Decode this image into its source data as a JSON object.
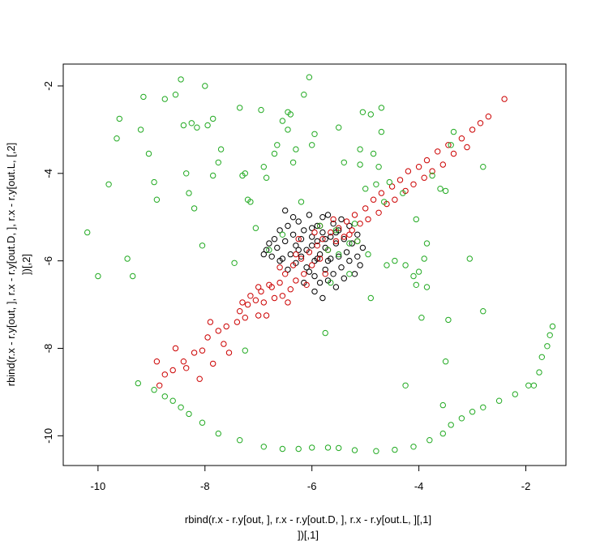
{
  "chart_data": {
    "type": "scatter",
    "title": "",
    "xlabel": [
      "rbind(r.x - r.y[out, ], r.x - r.y[out.D, ], r.x - r.y[out.L, ][,1]",
      "])[,1]"
    ],
    "ylabel": [
      "rbind(r.x - r.y[out, ], r.x - r.y[out.D, ], r.x - r.y[out.L, [,2]",
      "])[,2]"
    ],
    "xlim": [
      -10.65,
      -1.25
    ],
    "ylim": [
      -10.68,
      -1.5
    ],
    "xticks": [
      -10,
      -8,
      -6,
      -4,
      -2
    ],
    "yticks": [
      -2,
      -4,
      -6,
      -8,
      -10
    ],
    "xtick_labels": [
      "-10",
      "-8",
      "-6",
      "-4",
      "-2"
    ],
    "ytick_labels": [
      "-2",
      "-4",
      "-6",
      "-8",
      "-10"
    ],
    "grid": false,
    "marker": "open-circle",
    "series": [
      {
        "color": "#000000",
        "points": [
          [
            -6.9,
            -5.85
          ],
          [
            -6.85,
            -5.75
          ],
          [
            -6.8,
            -5.6
          ],
          [
            -6.75,
            -5.9
          ],
          [
            -6.7,
            -5.5
          ],
          [
            -6.65,
            -5.7
          ],
          [
            -6.6,
            -5.3
          ],
          [
            -6.55,
            -5.95
          ],
          [
            -6.5,
            -5.55
          ],
          [
            -6.45,
            -5.2
          ],
          [
            -6.4,
            -5.85
          ],
          [
            -6.35,
            -5.4
          ],
          [
            -6.3,
            -5.65
          ],
          [
            -6.3,
            -6.05
          ],
          [
            -6.25,
            -5.1
          ],
          [
            -6.2,
            -5.5
          ],
          [
            -6.2,
            -5.9
          ],
          [
            -6.15,
            -5.3
          ],
          [
            -6.1,
            -5.75
          ],
          [
            -6.1,
            -6.15
          ],
          [
            -6.05,
            -4.95
          ],
          [
            -6.0,
            -5.45
          ],
          [
            -6.0,
            -5.65
          ],
          [
            -5.95,
            -6.0
          ],
          [
            -5.95,
            -6.35
          ],
          [
            -5.9,
            -5.2
          ],
          [
            -5.9,
            -5.55
          ],
          [
            -5.85,
            -5.85
          ],
          [
            -5.85,
            -6.5
          ],
          [
            -5.8,
            -5.0
          ],
          [
            -5.8,
            -5.35
          ],
          [
            -5.75,
            -6.2
          ],
          [
            -5.75,
            -5.7
          ],
          [
            -5.7,
            -4.95
          ],
          [
            -5.7,
            -6.45
          ],
          [
            -5.65,
            -5.45
          ],
          [
            -5.65,
            -5.95
          ],
          [
            -5.6,
            -5.15
          ],
          [
            -5.6,
            -6.3
          ],
          [
            -5.55,
            -5.6
          ],
          [
            -5.55,
            -6.6
          ],
          [
            -5.5,
            -5.3
          ],
          [
            -5.5,
            -5.9
          ],
          [
            -5.45,
            -5.05
          ],
          [
            -5.45,
            -6.15
          ],
          [
            -5.4,
            -5.5
          ],
          [
            -5.4,
            -6.4
          ],
          [
            -5.35,
            -5.8
          ],
          [
            -5.3,
            -5.2
          ],
          [
            -5.3,
            -6.0
          ],
          [
            -5.25,
            -5.6
          ],
          [
            -5.2,
            -6.3
          ],
          [
            -5.15,
            -5.4
          ],
          [
            -5.15,
            -5.9
          ],
          [
            -5.1,
            -6.1
          ],
          [
            -5.05,
            -5.7
          ],
          [
            -6.45,
            -6.2
          ],
          [
            -6.6,
            -6.0
          ],
          [
            -6.15,
            -6.5
          ],
          [
            -5.95,
            -6.7
          ],
          [
            -6.35,
            -5.0
          ],
          [
            -6.5,
            -4.85
          ],
          [
            -5.8,
            -6.85
          ],
          [
            -6.0,
            -5.25
          ],
          [
            -5.75,
            -5.5
          ],
          [
            -5.9,
            -5.95
          ],
          [
            -6.25,
            -5.75
          ],
          [
            -5.55,
            -5.35
          ],
          [
            -5.7,
            -6.0
          ],
          [
            -6.05,
            -6.25
          ]
        ]
      },
      {
        "color": "#cc0000",
        "points": [
          [
            -8.9,
            -8.3
          ],
          [
            -8.85,
            -8.85
          ],
          [
            -8.75,
            -8.6
          ],
          [
            -8.6,
            -8.5
          ],
          [
            -8.55,
            -8.0
          ],
          [
            -8.4,
            -8.3
          ],
          [
            -8.35,
            -8.45
          ],
          [
            -8.2,
            -8.1
          ],
          [
            -8.1,
            -8.7
          ],
          [
            -8.05,
            -8.05
          ],
          [
            -7.95,
            -7.75
          ],
          [
            -7.9,
            -7.4
          ],
          [
            -7.85,
            -8.35
          ],
          [
            -7.75,
            -7.6
          ],
          [
            -7.65,
            -7.9
          ],
          [
            -7.6,
            -7.5
          ],
          [
            -7.55,
            -8.1
          ],
          [
            -7.4,
            -7.4
          ],
          [
            -7.35,
            -7.15
          ],
          [
            -7.3,
            -6.95
          ],
          [
            -7.25,
            -7.3
          ],
          [
            -7.2,
            -7.0
          ],
          [
            -7.15,
            -6.8
          ],
          [
            -7.05,
            -6.9
          ],
          [
            -7.0,
            -7.25
          ],
          [
            -6.95,
            -6.7
          ],
          [
            -6.9,
            -6.95
          ],
          [
            -6.85,
            -7.25
          ],
          [
            -6.75,
            -6.6
          ],
          [
            -6.7,
            -6.85
          ],
          [
            -6.6,
            -6.5
          ],
          [
            -6.55,
            -6.8
          ],
          [
            -6.5,
            -6.3
          ],
          [
            -6.4,
            -6.65
          ],
          [
            -6.35,
            -6.1
          ],
          [
            -6.3,
            -6.45
          ],
          [
            -6.2,
            -5.95
          ],
          [
            -6.15,
            -6.3
          ],
          [
            -6.05,
            -5.8
          ],
          [
            -6.0,
            -6.1
          ],
          [
            -5.9,
            -5.65
          ],
          [
            -5.85,
            -5.95
          ],
          [
            -5.8,
            -5.5
          ],
          [
            -5.7,
            -5.75
          ],
          [
            -5.65,
            -5.35
          ],
          [
            -5.55,
            -5.55
          ],
          [
            -5.5,
            -5.25
          ],
          [
            -5.4,
            -5.45
          ],
          [
            -5.35,
            -5.1
          ],
          [
            -5.25,
            -5.3
          ],
          [
            -5.2,
            -4.95
          ],
          [
            -5.1,
            -5.15
          ],
          [
            -5.0,
            -4.8
          ],
          [
            -4.95,
            -5.05
          ],
          [
            -4.85,
            -4.6
          ],
          [
            -4.75,
            -4.9
          ],
          [
            -4.7,
            -4.45
          ],
          [
            -4.6,
            -4.7
          ],
          [
            -4.5,
            -4.3
          ],
          [
            -4.45,
            -4.6
          ],
          [
            -4.35,
            -4.15
          ],
          [
            -4.25,
            -4.4
          ],
          [
            -4.2,
            -3.95
          ],
          [
            -4.1,
            -4.25
          ],
          [
            -4.0,
            -3.85
          ],
          [
            -3.9,
            -4.1
          ],
          [
            -3.85,
            -3.7
          ],
          [
            -3.75,
            -3.95
          ],
          [
            -3.65,
            -3.5
          ],
          [
            -3.55,
            -3.8
          ],
          [
            -3.45,
            -3.35
          ],
          [
            -3.35,
            -3.55
          ],
          [
            -3.2,
            -3.2
          ],
          [
            -3.1,
            -3.4
          ],
          [
            -3.0,
            -3.0
          ],
          [
            -2.85,
            -2.85
          ],
          [
            -2.7,
            -2.7
          ],
          [
            -2.4,
            -2.3
          ],
          [
            -6.6,
            -6.15
          ],
          [
            -6.8,
            -6.55
          ],
          [
            -5.95,
            -5.35
          ],
          [
            -5.6,
            -5.05
          ],
          [
            -6.3,
            -5.85
          ],
          [
            -6.1,
            -6.55
          ],
          [
            -5.3,
            -5.4
          ],
          [
            -5.15,
            -5.55
          ],
          [
            -5.75,
            -6.3
          ],
          [
            -6.45,
            -6.95
          ],
          [
            -7.0,
            -6.6
          ],
          [
            -5.85,
            -5.2
          ],
          [
            -6.25,
            -5.5
          ]
        ]
      },
      {
        "color": "#22aa22",
        "points": [
          [
            -10.2,
            -5.35
          ],
          [
            -10.0,
            -6.35
          ],
          [
            -9.8,
            -4.25
          ],
          [
            -9.65,
            -3.2
          ],
          [
            -9.6,
            -2.75
          ],
          [
            -9.45,
            -5.95
          ],
          [
            -9.35,
            -6.35
          ],
          [
            -9.2,
            -3.0
          ],
          [
            -9.15,
            -2.25
          ],
          [
            -9.05,
            -3.55
          ],
          [
            -8.95,
            -4.2
          ],
          [
            -8.9,
            -4.6
          ],
          [
            -8.75,
            -2.3
          ],
          [
            -8.55,
            -2.2
          ],
          [
            -8.45,
            -1.85
          ],
          [
            -8.4,
            -2.9
          ],
          [
            -8.35,
            -4.0
          ],
          [
            -8.3,
            -4.45
          ],
          [
            -8.25,
            -2.85
          ],
          [
            -8.2,
            -4.8
          ],
          [
            -8.15,
            -2.95
          ],
          [
            -8.05,
            -5.65
          ],
          [
            -8.0,
            -2.0
          ],
          [
            -7.95,
            -2.9
          ],
          [
            -7.85,
            -2.75
          ],
          [
            -7.85,
            -4.05
          ],
          [
            -7.75,
            -3.75
          ],
          [
            -7.7,
            -3.45
          ],
          [
            -7.45,
            -6.05
          ],
          [
            -7.35,
            -2.5
          ],
          [
            -7.3,
            -4.05
          ],
          [
            -7.25,
            -4.0
          ],
          [
            -7.2,
            -4.6
          ],
          [
            -7.15,
            -4.65
          ],
          [
            -7.05,
            -5.25
          ],
          [
            -6.95,
            -2.55
          ],
          [
            -6.9,
            -3.85
          ],
          [
            -6.85,
            -4.1
          ],
          [
            -6.8,
            -5.75
          ],
          [
            -6.7,
            -3.55
          ],
          [
            -6.65,
            -3.35
          ],
          [
            -6.55,
            -2.8
          ],
          [
            -6.55,
            -5.4
          ],
          [
            -6.45,
            -2.6
          ],
          [
            -6.45,
            -3.0
          ],
          [
            -6.4,
            -2.65
          ],
          [
            -6.35,
            -3.75
          ],
          [
            -6.3,
            -3.45
          ],
          [
            -6.2,
            -4.65
          ],
          [
            -6.15,
            -2.2
          ],
          [
            -6.05,
            -1.8
          ],
          [
            -6.0,
            -3.35
          ],
          [
            -5.95,
            -3.1
          ],
          [
            -5.85,
            -5.2
          ],
          [
            -5.7,
            -5.75
          ],
          [
            -5.65,
            -6.5
          ],
          [
            -5.55,
            -5.3
          ],
          [
            -5.5,
            -2.95
          ],
          [
            -5.4,
            -3.75
          ],
          [
            -5.3,
            -6.3
          ],
          [
            -5.2,
            -5.15
          ],
          [
            -5.15,
            -5.55
          ],
          [
            -5.1,
            -3.45
          ],
          [
            -5.1,
            -3.8
          ],
          [
            -5.05,
            -2.6
          ],
          [
            -5.0,
            -4.35
          ],
          [
            -4.95,
            -5.85
          ],
          [
            -4.9,
            -2.65
          ],
          [
            -4.85,
            -3.55
          ],
          [
            -4.8,
            -4.25
          ],
          [
            -4.75,
            -3.85
          ],
          [
            -4.7,
            -2.5
          ],
          [
            -4.7,
            -3.05
          ],
          [
            -4.65,
            -4.65
          ],
          [
            -4.6,
            -6.1
          ],
          [
            -4.55,
            -4.2
          ],
          [
            -4.45,
            -6.0
          ],
          [
            -4.3,
            -4.45
          ],
          [
            -4.25,
            -6.1
          ],
          [
            -4.1,
            -6.35
          ],
          [
            -4.05,
            -6.55
          ],
          [
            -4.0,
            -6.25
          ],
          [
            -3.95,
            -7.3
          ],
          [
            -3.9,
            -5.95
          ],
          [
            -3.85,
            -5.6
          ],
          [
            -3.75,
            -4.05
          ],
          [
            -3.6,
            -4.35
          ],
          [
            -3.5,
            -4.4
          ],
          [
            -3.4,
            -3.35
          ],
          [
            -3.35,
            -3.05
          ],
          [
            -3.05,
            -5.95
          ],
          [
            -2.8,
            -3.85
          ],
          [
            -2.8,
            -7.15
          ],
          [
            -4.25,
            -8.85
          ],
          [
            -3.55,
            -9.3
          ],
          [
            -3.45,
            -7.35
          ],
          [
            -4.9,
            -6.85
          ],
          [
            -5.75,
            -7.65
          ],
          [
            -4.05,
            -5.05
          ],
          [
            -5.3,
            -5.6
          ],
          [
            -5.5,
            -5.85
          ],
          [
            -3.85,
            -6.6
          ],
          [
            -9.25,
            -8.8
          ],
          [
            -8.95,
            -8.95
          ],
          [
            -8.75,
            -9.1
          ],
          [
            -8.6,
            -9.2
          ],
          [
            -8.45,
            -9.35
          ],
          [
            -8.3,
            -9.5
          ],
          [
            -8.05,
            -9.7
          ],
          [
            -7.75,
            -9.95
          ],
          [
            -7.35,
            -10.1
          ],
          [
            -6.9,
            -10.25
          ],
          [
            -6.55,
            -10.3
          ],
          [
            -6.25,
            -10.3
          ],
          [
            -6.0,
            -10.27
          ],
          [
            -5.7,
            -10.27
          ],
          [
            -5.5,
            -10.28
          ],
          [
            -5.2,
            -10.33
          ],
          [
            -4.8,
            -10.35
          ],
          [
            -4.45,
            -10.32
          ],
          [
            -4.1,
            -10.25
          ],
          [
            -3.8,
            -10.1
          ],
          [
            -3.55,
            -9.95
          ],
          [
            -3.4,
            -9.75
          ],
          [
            -3.2,
            -9.6
          ],
          [
            -3.0,
            -9.45
          ],
          [
            -2.8,
            -9.35
          ],
          [
            -2.5,
            -9.2
          ],
          [
            -2.2,
            -9.05
          ],
          [
            -1.95,
            -8.85
          ],
          [
            -1.85,
            -8.85
          ],
          [
            -1.75,
            -8.55
          ],
          [
            -1.7,
            -8.2
          ],
          [
            -1.6,
            -7.95
          ],
          [
            -1.55,
            -7.7
          ],
          [
            -1.5,
            -7.5
          ],
          [
            -7.25,
            -8.05
          ],
          [
            -3.5,
            -8.3
          ]
        ]
      }
    ]
  }
}
